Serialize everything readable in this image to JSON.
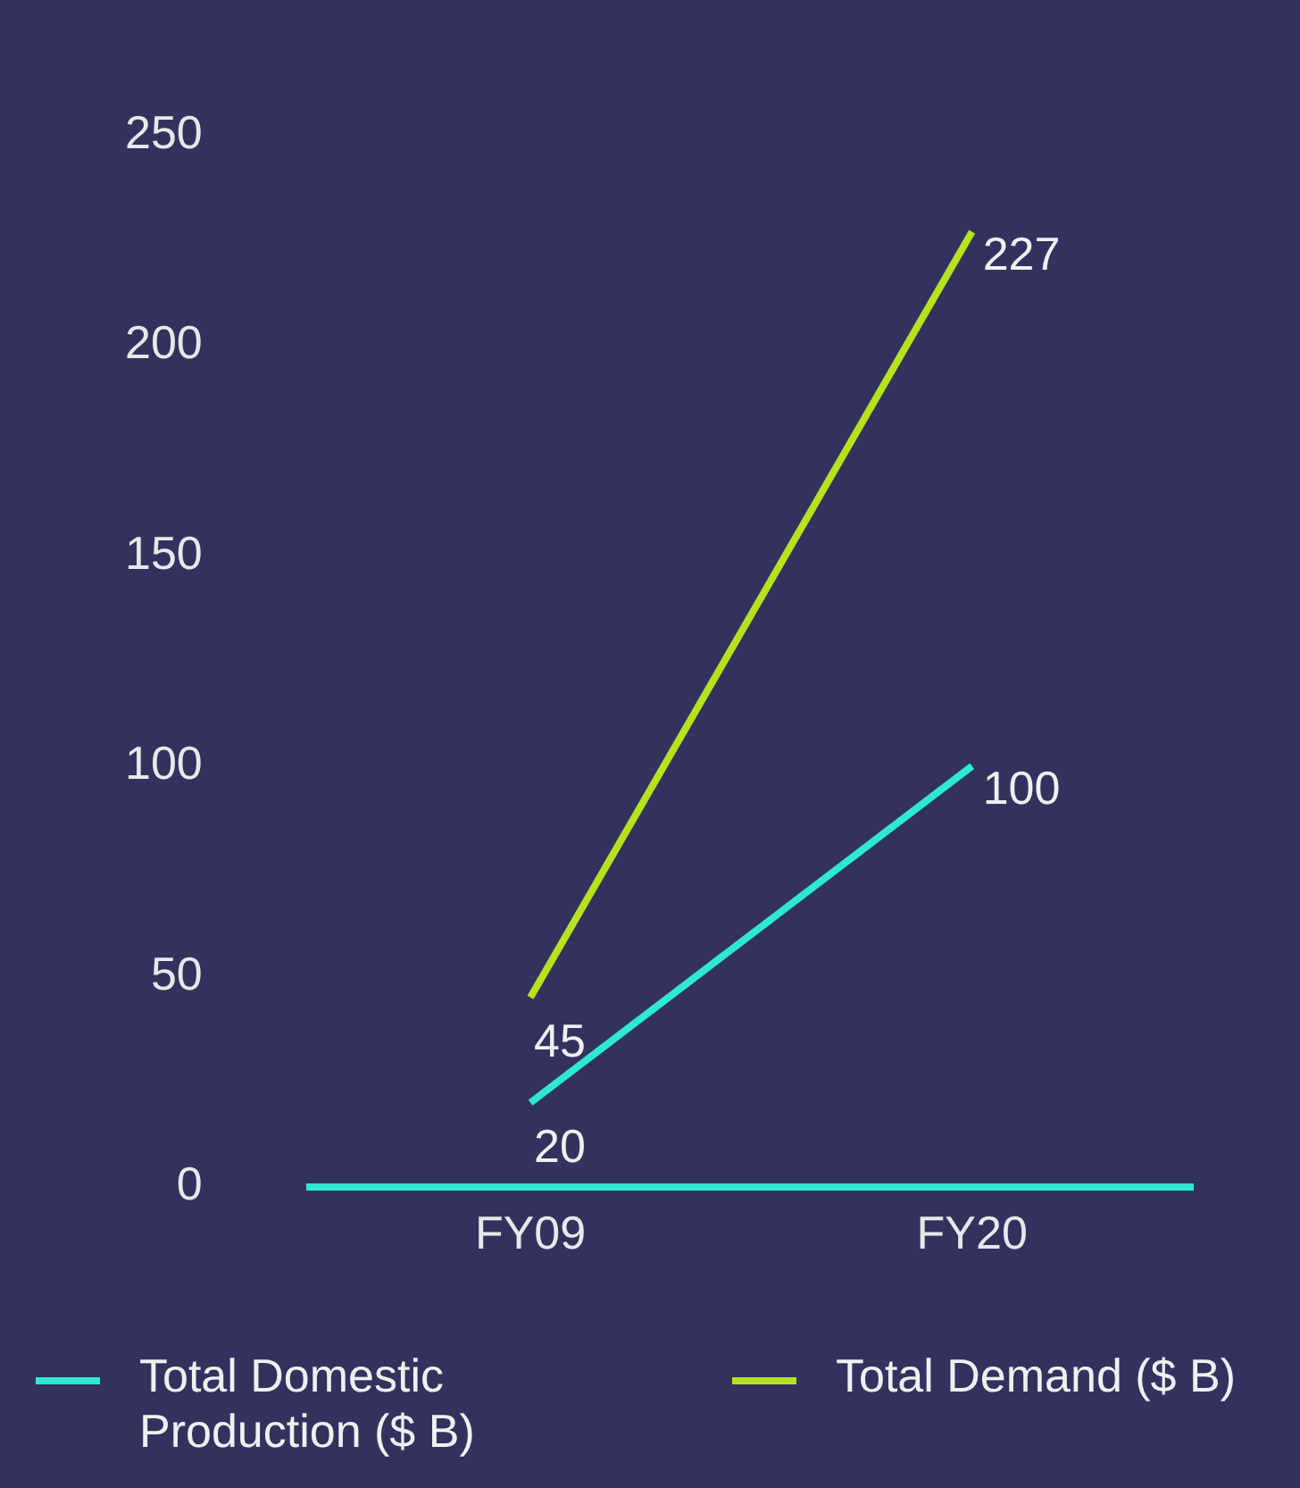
{
  "chart_data": {
    "type": "line",
    "categories": [
      "FY09",
      "FY20"
    ],
    "series": [
      {
        "name": "Total Domestic Production ($ B)",
        "color": "#2ee8d5",
        "values": [
          20,
          100
        ]
      },
      {
        "name": "Total Demand ($ B)",
        "color": "#b6e31e",
        "values": [
          45,
          227
        ]
      }
    ],
    "ylim": [
      0,
      250
    ],
    "yticks": [
      0,
      50,
      100,
      150,
      200,
      250
    ],
    "grid": false,
    "legend": "bottom",
    "marker": "none",
    "line_style": "solid",
    "data_labels": true
  }
}
